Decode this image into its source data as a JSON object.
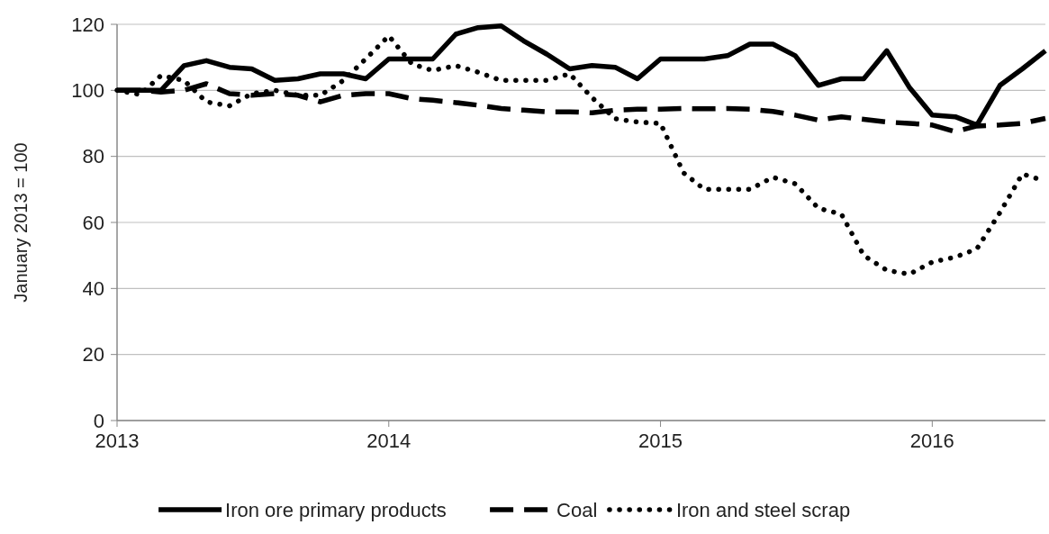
{
  "chart_data": {
    "type": "line",
    "ylabel": "January 2013 = 100",
    "x": [
      "2013-01",
      "2013-02",
      "2013-03",
      "2013-04",
      "2013-05",
      "2013-06",
      "2013-07",
      "2013-08",
      "2013-09",
      "2013-10",
      "2013-11",
      "2013-12",
      "2014-01",
      "2014-02",
      "2014-03",
      "2014-04",
      "2014-05",
      "2014-06",
      "2014-07",
      "2014-08",
      "2014-09",
      "2014-10",
      "2014-11",
      "2014-12",
      "2015-01",
      "2015-02",
      "2015-03",
      "2015-04",
      "2015-05",
      "2015-06",
      "2015-07",
      "2015-08",
      "2015-09",
      "2015-10",
      "2015-11",
      "2015-12",
      "2016-01",
      "2016-02",
      "2016-03",
      "2016-04",
      "2016-05",
      "2016-06"
    ],
    "xlim": [
      "2013-01",
      "2016-06"
    ],
    "xticks": [
      "2013",
      "2014",
      "2015",
      "2016"
    ],
    "ylim": [
      0,
      120
    ],
    "yticks": [
      0,
      20,
      40,
      60,
      80,
      100,
      120
    ],
    "grid": "y",
    "legend": "bottom",
    "marker": "none",
    "series": [
      {
        "name": "Iron ore primary products",
        "color": "#000000",
        "line_style": "solid",
        "values": [
          100,
          100,
          100,
          107.5,
          109,
          107,
          106.5,
          103,
          103.5,
          105,
          105,
          103.5,
          109.5,
          109.5,
          109.5,
          117,
          119,
          119.5,
          115,
          111,
          106.5,
          107.5,
          107,
          103.5,
          109.5,
          109.5,
          109.5,
          110.5,
          114,
          114,
          110.5,
          101.5,
          103.5,
          103.5,
          112,
          101,
          92.5,
          92,
          89.5,
          101.5,
          106.5,
          112
        ]
      },
      {
        "name": "Coal",
        "color": "#000000",
        "line_style": "dashed",
        "values": [
          100,
          100,
          99.5,
          100,
          102,
          99,
          98.5,
          99,
          98.5,
          96.5,
          98.5,
          99,
          99,
          97.5,
          97,
          96.3,
          95.5,
          94.5,
          94,
          93.5,
          93.5,
          93.2,
          94,
          94.3,
          94.3,
          94.5,
          94.4,
          94.5,
          94.3,
          93.6,
          92.5,
          91,
          92,
          91.2,
          90.4,
          90,
          89.5,
          87.5,
          89.2,
          89.5,
          90,
          91.5
        ]
      },
      {
        "name": "Iron and steel scrap",
        "color": "#000000",
        "line_style": "dotted",
        "values": [
          100,
          98.7,
          104.5,
          103,
          96.5,
          95.3,
          99,
          100,
          98.5,
          98.5,
          103,
          109.5,
          116.5,
          108,
          106,
          107.5,
          105.5,
          103,
          103,
          103,
          105,
          97.8,
          91.4,
          90.4,
          90,
          75,
          70,
          70,
          70,
          73.7,
          71.7,
          64.3,
          62.5,
          50,
          45.5,
          44.3,
          48,
          49.5,
          52,
          63,
          74.7,
          72.5
        ]
      }
    ]
  }
}
